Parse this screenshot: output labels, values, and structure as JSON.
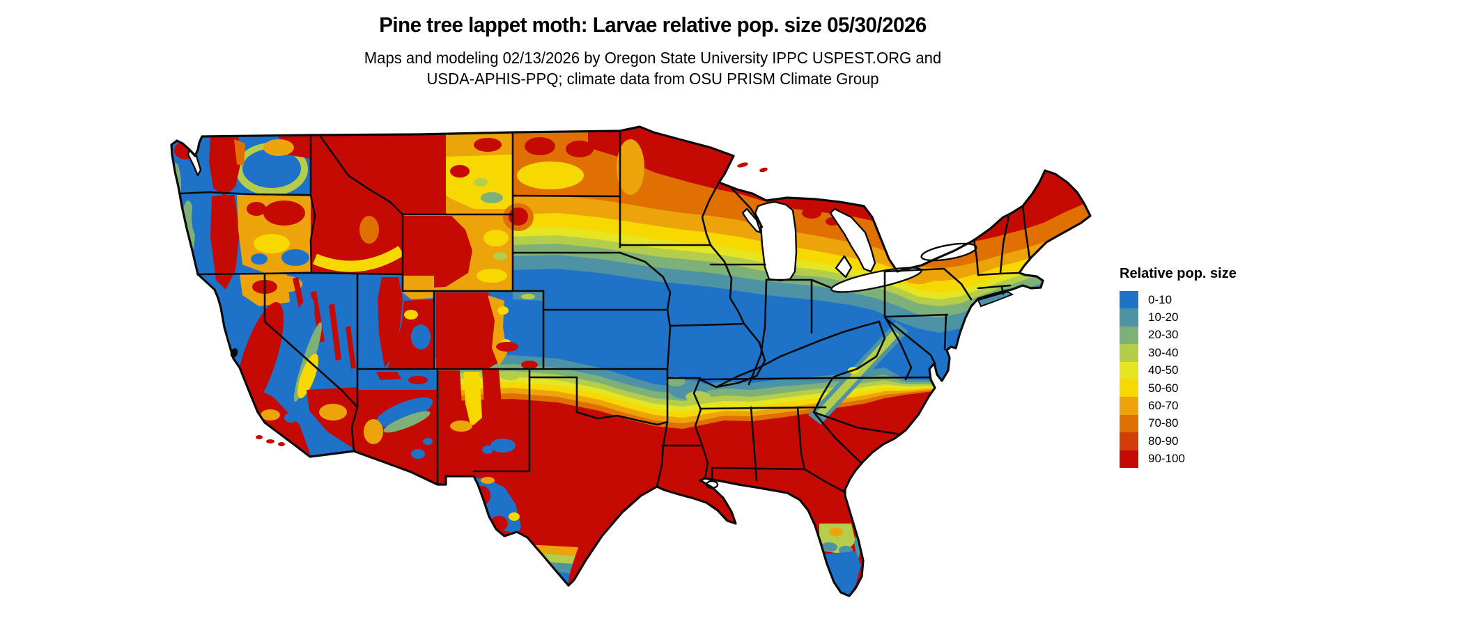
{
  "header": {
    "title": "Pine tree lappet moth: Larvae relative pop. size 05/30/2026",
    "subtitle1": "Maps and modeling 02/13/2026 by Oregon State University IPPC USPEST.ORG and",
    "subtitle2": "USDA-APHIS-PPQ; climate data from OSU PRISM Climate Group"
  },
  "legend": {
    "title": "Relative pop. size",
    "items": [
      {
        "label": "0-10",
        "color": "#1E73C8"
      },
      {
        "label": "10-20",
        "color": "#4E92A5"
      },
      {
        "label": "20-30",
        "color": "#7DB178"
      },
      {
        "label": "30-40",
        "color": "#B4CD4B"
      },
      {
        "label": "40-50",
        "color": "#E5E521"
      },
      {
        "label": "50-60",
        "color": "#F7D800"
      },
      {
        "label": "60-70",
        "color": "#EDA40B"
      },
      {
        "label": "70-80",
        "color": "#E07002"
      },
      {
        "label": "80-90",
        "color": "#D33D06"
      },
      {
        "label": "90-100",
        "color": "#C40A03"
      }
    ]
  },
  "map": {
    "region": "Contiguous United States",
    "border_color": "#0a0a0a",
    "water_color": "#ffffff",
    "value_scale": {
      "min": 0,
      "max": 100,
      "bins": 10
    }
  }
}
